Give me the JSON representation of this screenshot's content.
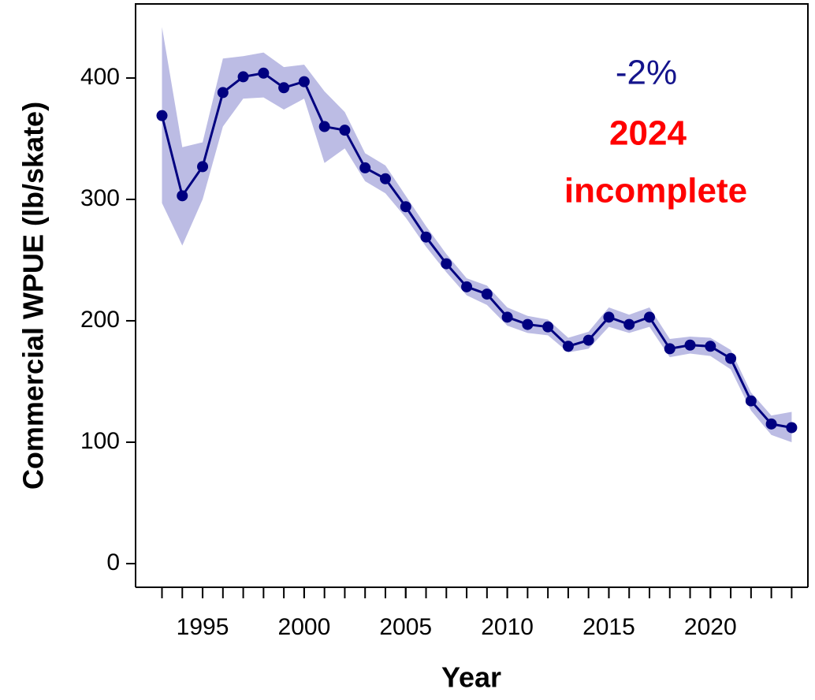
{
  "chart_data": {
    "type": "line",
    "ylabel": "Commercial WPUE (lb/skate)",
    "xlabel": "Year",
    "annotations": [
      {
        "text": "-2%",
        "color": "#14148c"
      },
      {
        "text": "2024",
        "color": "#ff0000"
      },
      {
        "text": "incomplete",
        "color": "#ff0000"
      }
    ],
    "x": [
      1993,
      1994,
      1995,
      1996,
      1997,
      1998,
      1999,
      2000,
      2001,
      2002,
      2003,
      2004,
      2005,
      2006,
      2007,
      2008,
      2009,
      2010,
      2011,
      2012,
      2013,
      2014,
      2015,
      2016,
      2017,
      2018,
      2019,
      2020,
      2021,
      2022,
      2023,
      2024
    ],
    "series": [
      {
        "color": "#000080",
        "band_color": "#bcbce4",
        "values": [
          369,
          303,
          327,
          388,
          401,
          404,
          392,
          397,
          360,
          357,
          326,
          317,
          294,
          269,
          247,
          228,
          222,
          203,
          197,
          195,
          179,
          184,
          203,
          197,
          203,
          177,
          180,
          179,
          169,
          134,
          115,
          112
        ],
        "upper": [
          442,
          343,
          347,
          416,
          418,
          421,
          409,
          411,
          389,
          372,
          338,
          328,
          303,
          278,
          255,
          235,
          229,
          211,
          204,
          201,
          186,
          191,
          211,
          205,
          211,
          185,
          187,
          186,
          176,
          141,
          122,
          125
        ],
        "lower": [
          297,
          262,
          300,
          360,
          383,
          384,
          374,
          383,
          330,
          342,
          315,
          305,
          285,
          261,
          240,
          221,
          213,
          196,
          190,
          188,
          174,
          177,
          195,
          190,
          195,
          170,
          173,
          171,
          160,
          126,
          106,
          100
        ]
      }
    ],
    "xlim": [
      1991.7,
      2024.8
    ],
    "xticks": [
      1995,
      2000,
      2005,
      2010,
      2015,
      2020
    ],
    "ylim": [
      -19.5,
      461
    ],
    "yticks": [
      0,
      100,
      200,
      300,
      400
    ]
  }
}
